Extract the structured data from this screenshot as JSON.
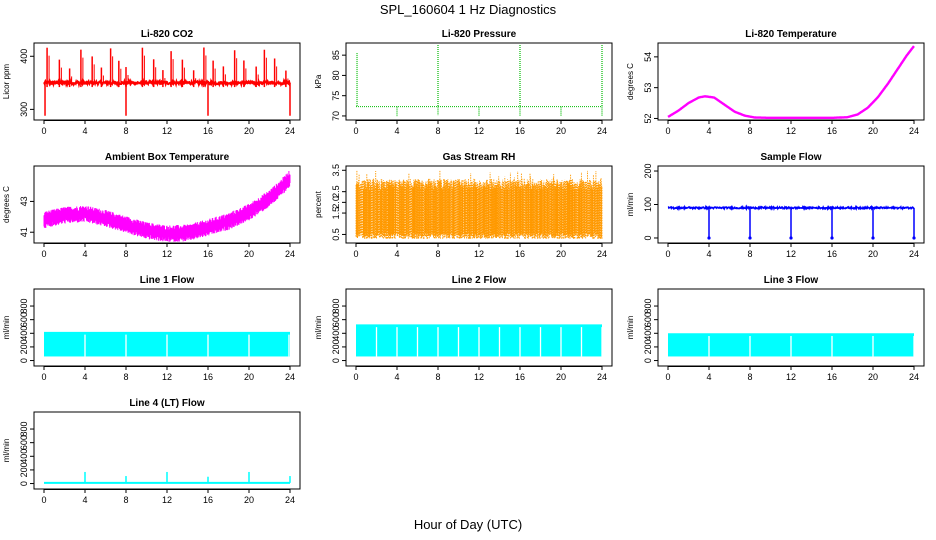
{
  "figure": {
    "title": "SPL_160604  1 Hz Diagnostics",
    "xlabel": "Hour of Day (UTC)"
  },
  "chart_data": [
    {
      "type": "line",
      "title": "Li-820 CO2",
      "ylabel": "Licor ppm",
      "color": "#ff0000",
      "xlim": [
        0,
        24
      ],
      "xticks": [
        0,
        4,
        8,
        12,
        16,
        20,
        24
      ],
      "ylim": [
        280,
        425
      ],
      "yticks": [
        300,
        400
      ],
      "baseline": 350,
      "spikes_hours": [
        0.3,
        1.5,
        2.5,
        3.6,
        4.7,
        5.6,
        6.5,
        7.3,
        8.0,
        9.6,
        10.7,
        11.6,
        12.4,
        13.5,
        14.6,
        15.6,
        16.5,
        17.5,
        18.6,
        19.5,
        20.7,
        21.5,
        22.5,
        23.6
      ],
      "spike_max": 418,
      "dip_min": 288
    },
    {
      "type": "line",
      "title": "Li-820 Pressure",
      "ylabel": "kPa",
      "color": "#00bb00",
      "xlim": [
        0,
        24
      ],
      "xticks": [
        0,
        4,
        8,
        12,
        16,
        20,
        24
      ],
      "ylim": [
        69,
        88
      ],
      "yticks": [
        70,
        75,
        80,
        85
      ],
      "baseline": 72.3,
      "spikes": [
        {
          "hour": 0.1,
          "value": 85.5
        },
        {
          "hour": 8.0,
          "value": 87.5
        },
        {
          "hour": 16.0,
          "value": 87.5
        },
        {
          "hour": 24.0,
          "value": 87.5
        }
      ],
      "dips": [
        {
          "hour": 4.0,
          "value": 69.8
        },
        {
          "hour": 8.0,
          "value": 70.2
        },
        {
          "hour": 12.0,
          "value": 70.0
        },
        {
          "hour": 16.0,
          "value": 70.0
        },
        {
          "hour": 20.0,
          "value": 70.0
        },
        {
          "hour": 24.0,
          "value": 70.0
        }
      ]
    },
    {
      "type": "line",
      "title": "Li-820 Temperature",
      "ylabel": "degrees C",
      "color": "#ff00ff",
      "xlim": [
        0,
        24
      ],
      "xticks": [
        0,
        4,
        8,
        12,
        16,
        20,
        24
      ],
      "ylim": [
        51.95,
        54.45
      ],
      "yticks": [
        52.0,
        53.0,
        54.0
      ],
      "x": [
        0,
        1,
        2,
        3,
        3.6,
        4.5,
        5.5,
        6.5,
        7.5,
        8.5,
        10,
        12,
        14,
        16,
        17.5,
        18.5,
        19.5,
        20.5,
        21.5,
        22.5,
        23.3,
        24
      ],
      "y": [
        52.05,
        52.25,
        52.5,
        52.68,
        52.72,
        52.68,
        52.45,
        52.22,
        52.09,
        52.03,
        52.02,
        52.02,
        52.02,
        52.02,
        52.04,
        52.13,
        52.35,
        52.7,
        53.15,
        53.65,
        54.05,
        54.35
      ]
    },
    {
      "type": "line",
      "title": "Ambient Box Temperature",
      "ylabel": "degrees C",
      "color": "#ff00ff",
      "xlim": [
        0,
        24
      ],
      "xticks": [
        0,
        4,
        8,
        12,
        16,
        20,
        24
      ],
      "ylim": [
        40.3,
        45.3
      ],
      "yticks": [
        41,
        43
      ],
      "x": [
        0,
        2,
        4,
        6,
        8,
        10,
        12,
        14,
        16,
        18,
        20,
        22,
        23,
        24
      ],
      "y": [
        41.8,
        42.1,
        42.2,
        41.9,
        41.5,
        41.1,
        40.9,
        40.95,
        41.3,
        41.7,
        42.3,
        43.2,
        43.8,
        44.5
      ],
      "noise_band": 0.55
    },
    {
      "type": "line",
      "title": "Gas Stream RH",
      "ylabel": "percent",
      "color": "#ff9900",
      "xlim": [
        0,
        24
      ],
      "xticks": [
        0,
        4,
        8,
        12,
        16,
        20,
        24
      ],
      "ylim": [
        0.1,
        3.7
      ],
      "yticks": [
        0.5,
        1.5,
        2.0,
        2.5,
        3.5
      ],
      "band_low": 0.6,
      "band_high": 3.0,
      "extreme_low": 0.3,
      "extreme_high": 3.5
    },
    {
      "type": "line",
      "title": "Sample Flow",
      "ylabel": "ml/min",
      "color": "#0000ff",
      "xlim": [
        0,
        24
      ],
      "xticks": [
        0,
        4,
        8,
        12,
        16,
        20,
        24
      ],
      "ylim": [
        -15,
        215
      ],
      "yticks": [
        0,
        100,
        200
      ],
      "baseline": 90,
      "dips_hours": [
        4.0,
        8.0,
        12.0,
        16.0,
        20.0,
        24.0
      ],
      "dip_value": 0
    },
    {
      "type": "line",
      "title": "Line 1 Flow",
      "ylabel": "ml/min",
      "color": "#00ffff",
      "xlim": [
        0,
        24
      ],
      "xticks": [
        0,
        4,
        8,
        12,
        16,
        20,
        24
      ],
      "ylim": [
        -80,
        1050
      ],
      "yticks": [
        0,
        200,
        400,
        600,
        800
      ],
      "band_low": 60,
      "band_high": 410,
      "gaps_hours": [
        4.0,
        8.0,
        12.0,
        16.0,
        20.0,
        23.9
      ]
    },
    {
      "type": "line",
      "title": "Line 2 Flow",
      "ylabel": "ml/min",
      "color": "#00ffff",
      "xlim": [
        0,
        24
      ],
      "xticks": [
        0,
        4,
        8,
        12,
        16,
        20,
        24
      ],
      "ylim": [
        -80,
        1050
      ],
      "yticks": [
        0,
        200,
        400,
        600,
        800
      ],
      "band_low": 60,
      "band_high": 520,
      "gaps_hours": [
        2.0,
        4.0,
        6.0,
        8.0,
        10.0,
        12.0,
        14.0,
        16.0,
        18.0,
        20.0,
        22.0,
        24.0
      ]
    },
    {
      "type": "line",
      "title": "Line 3 Flow",
      "ylabel": "ml/min",
      "color": "#00ffff",
      "xlim": [
        0,
        24
      ],
      "xticks": [
        0,
        4,
        8,
        12,
        16,
        20,
        24
      ],
      "ylim": [
        -80,
        1050
      ],
      "yticks": [
        0,
        200,
        400,
        600,
        800
      ],
      "band_low": 60,
      "band_high": 390,
      "gaps_hours": [
        4.0,
        8.0,
        12.0,
        16.0,
        20.0,
        24.0
      ]
    },
    {
      "type": "line",
      "title": "Line 4 (LT) Flow",
      "ylabel": "ml/min",
      "color": "#00ffff",
      "xlim": [
        0,
        24
      ],
      "xticks": [
        0,
        4,
        8,
        12,
        16,
        20,
        24
      ],
      "ylim": [
        -80,
        1050
      ],
      "yticks": [
        0,
        200,
        400,
        600,
        800
      ],
      "baseline": 10,
      "spikes": [
        {
          "hour": 4.0,
          "value": 170
        },
        {
          "hour": 8.0,
          "value": 110
        },
        {
          "hour": 12.0,
          "value": 170
        },
        {
          "hour": 16.0,
          "value": 100
        },
        {
          "hour": 20.0,
          "value": 170
        },
        {
          "hour": 24.0,
          "value": 110
        }
      ]
    }
  ]
}
